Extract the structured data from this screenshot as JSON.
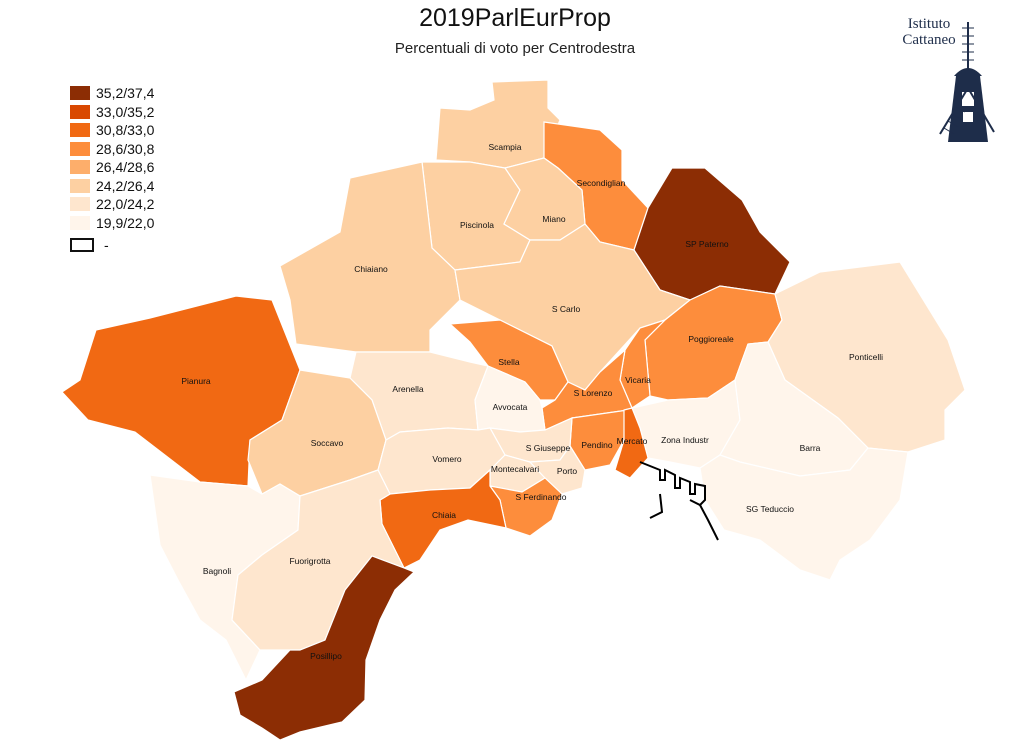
{
  "title": "2019ParlEurProp",
  "subtitle": "Percentuali di voto per Centrodestra",
  "logo": {
    "line1": "Istituto",
    "line2": "Cattaneo"
  },
  "legend": [
    {
      "label": "35,2/37,4",
      "color": "#8c2d04"
    },
    {
      "label": "33,0/35,2",
      "color": "#d94801"
    },
    {
      "label": "30,8/33,0",
      "color": "#f16913"
    },
    {
      "label": "28,6/30,8",
      "color": "#fd8d3c"
    },
    {
      "label": "26,4/28,6",
      "color": "#fdae6b"
    },
    {
      "label": "24,2/26,4",
      "color": "#fdd0a2"
    },
    {
      "label": "22,0/24,2",
      "color": "#fee6ce"
    },
    {
      "label": "19,9/22,0",
      "color": "#fff5eb"
    },
    {
      "label": "-",
      "color": "#ffffff"
    }
  ],
  "districts": {
    "scampia": {
      "name": "Scampia",
      "class": "24,2/26,4"
    },
    "secondigliano": {
      "name": "Secondiglian",
      "class": "28,6/30,8"
    },
    "piscinola": {
      "name": "Piscinola",
      "class": "24,2/26,4"
    },
    "miano": {
      "name": "Miano",
      "class": "24,2/26,4"
    },
    "sp_paterno": {
      "name": "SP Paterno",
      "class": "35,2/37,4"
    },
    "chiaiano": {
      "name": "Chiaiano",
      "class": "24,2/26,4"
    },
    "s_carlo": {
      "name": "S Carlo",
      "class": "24,2/26,4"
    },
    "poggioreale": {
      "name": "Poggioreale",
      "class": "28,6/30,8"
    },
    "ponticelli": {
      "name": "Ponticelli",
      "class": "22,0/24,2"
    },
    "pianura": {
      "name": "Pianura",
      "class": "30,8/33,0"
    },
    "stella": {
      "name": "Stella",
      "class": "28,6/30,8"
    },
    "vicaria": {
      "name": "Vicaria",
      "class": "28,6/30,8"
    },
    "arenella": {
      "name": "Arenella",
      "class": "22,0/24,2"
    },
    "s_lorenzo": {
      "name": "S Lorenzo",
      "class": "28,6/30,8"
    },
    "avvocata": {
      "name": "Avvocata",
      "class": "19,9/22,0"
    },
    "soccavo": {
      "name": "Soccavo",
      "class": "24,2/26,4"
    },
    "zona_industriale": {
      "name": "Zona Industr",
      "class": "19,9/22,0"
    },
    "barra": {
      "name": "Barra",
      "class": "19,9/22,0"
    },
    "pendino": {
      "name": "Pendino",
      "class": "28,6/30,8"
    },
    "mercato": {
      "name": "Mercato",
      "class": "30,8/33,0"
    },
    "s_giuseppe": {
      "name": "S Giuseppe",
      "class": "22,0/24,2"
    },
    "vomero": {
      "name": "Vomero",
      "class": "22,0/24,2"
    },
    "montecalvario": {
      "name": "Montecalvari",
      "class": "22,0/24,2"
    },
    "porto": {
      "name": "Porto",
      "class": "22,0/24,2"
    },
    "s_ferdinando": {
      "name": "S Ferdinando",
      "class": "28,6/30,8"
    },
    "sg_teduccio": {
      "name": "SG Teduccio",
      "class": "19,9/22,0"
    },
    "chiaia": {
      "name": "Chiaia",
      "class": "30,8/33,0"
    },
    "bagnoli": {
      "name": "Bagnoli",
      "class": "19,9/22,0"
    },
    "fuorigrotta": {
      "name": "Fuorigrotta",
      "class": "22,0/24,2"
    },
    "posillipo": {
      "name": "Posillipo",
      "class": "35,2/37,4"
    }
  }
}
